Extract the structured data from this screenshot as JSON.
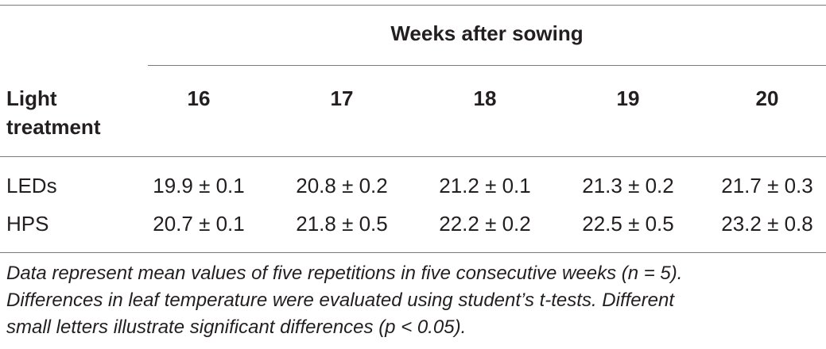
{
  "table": {
    "group_header": "Weeks after sowing",
    "row_header_line1": "Light",
    "row_header_line2": "treatment",
    "columns": [
      "16",
      "17",
      "18",
      "19",
      "20"
    ],
    "rows": [
      {
        "label": "LEDs",
        "values": [
          "19.9 ± 0.1",
          "20.8 ± 0.2",
          "21.2 ± 0.1",
          "21.3 ± 0.2",
          "21.7 ± 0.3"
        ]
      },
      {
        "label": "HPS",
        "values": [
          "20.7 ± 0.1",
          "21.8 ± 0.5",
          "22.2 ± 0.2",
          "22.5 ± 0.5",
          "23.2 ± 0.8"
        ]
      }
    ]
  },
  "footnote": {
    "line1": "Data represent mean values of five repetitions in five consecutive weeks (n = 5).",
    "line2": "Differences in leaf temperature were evaluated using student’s t-tests. Different",
    "line3": "small letters illustrate significant differences (p < 0.05)."
  }
}
